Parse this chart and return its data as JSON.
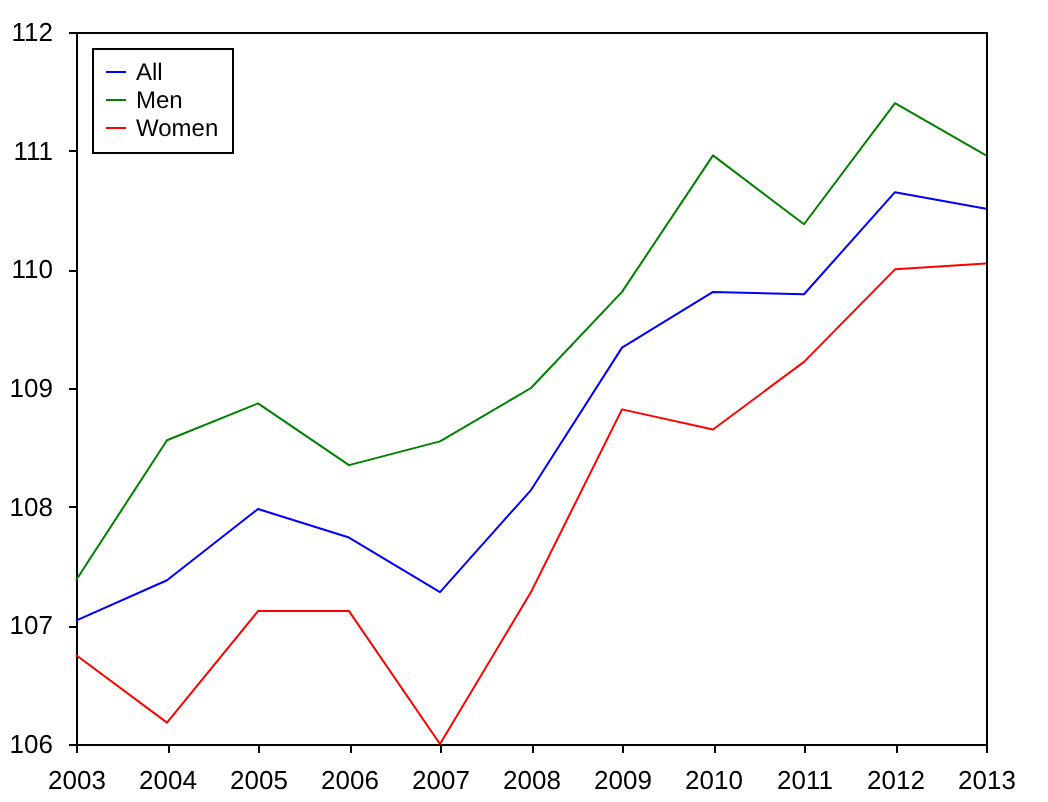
{
  "chart_data": {
    "type": "line",
    "x": [
      2003,
      2004,
      2005,
      2006,
      2007,
      2008,
      2009,
      2010,
      2011,
      2012,
      2013
    ],
    "series": [
      {
        "name": "All",
        "color": "#0000ff",
        "values": [
          107.04,
          107.38,
          107.98,
          107.74,
          107.28,
          108.14,
          109.34,
          109.81,
          109.79,
          110.65,
          110.51
        ]
      },
      {
        "name": "Men",
        "color": "#008000",
        "values": [
          107.38,
          108.56,
          108.87,
          108.35,
          108.55,
          109.0,
          109.81,
          110.96,
          110.38,
          111.4,
          110.96
        ]
      },
      {
        "name": "Women",
        "color": "#ff0000",
        "values": [
          106.75,
          106.18,
          107.12,
          107.12,
          106.0,
          107.28,
          108.82,
          108.65,
          109.22,
          110.0,
          110.05
        ]
      }
    ],
    "xlim": [
      2003,
      2013
    ],
    "xticks": [
      2003,
      2004,
      2005,
      2006,
      2007,
      2008,
      2009,
      2010,
      2011,
      2012,
      2013
    ],
    "ylim": [
      106,
      112
    ],
    "yticks": [
      106,
      107,
      108,
      109,
      110,
      111,
      112
    ],
    "grid": false,
    "legend": "top left",
    "line_style": "solid",
    "marker": "none"
  }
}
